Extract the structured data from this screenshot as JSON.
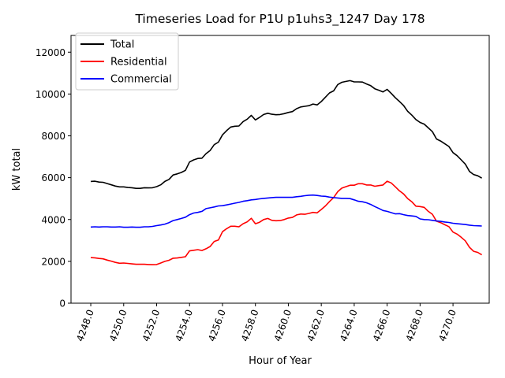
{
  "chart_data": {
    "type": "line",
    "title": "Timeseries Load for P1U p1uhs3_1247  Day 178",
    "xlabel": "Hour of Year",
    "ylabel": "kW total",
    "xlim": [
      4246.8,
      4272.2
    ],
    "ylim": [
      0,
      12800
    ],
    "xticks": [
      4248.0,
      4250.0,
      4252.0,
      4254.0,
      4256.0,
      4258.0,
      4260.0,
      4262.0,
      4264.0,
      4266.0,
      4268.0,
      4270.0
    ],
    "xtick_labels": [
      "4248.0",
      "4250.0",
      "4252.0",
      "4254.0",
      "4256.0",
      "4258.0",
      "4260.0",
      "4262.0",
      "4264.0",
      "4266.0",
      "4268.0",
      "4270.0"
    ],
    "yticks": [
      0,
      2000,
      4000,
      6000,
      8000,
      10000,
      12000
    ],
    "ytick_labels": [
      "0",
      "2000",
      "4000",
      "6000",
      "8000",
      "10000",
      "12000"
    ],
    "grid": false,
    "legend_position": "top-left",
    "x": [
      4248.0,
      4248.25,
      4248.5,
      4248.75,
      4249.0,
      4249.25,
      4249.5,
      4249.75,
      4250.0,
      4250.25,
      4250.5,
      4250.75,
      4251.0,
      4251.25,
      4251.5,
      4251.75,
      4252.0,
      4252.25,
      4252.5,
      4252.75,
      4253.0,
      4253.25,
      4253.5,
      4253.75,
      4254.0,
      4254.25,
      4254.5,
      4254.75,
      4255.0,
      4255.25,
      4255.5,
      4255.75,
      4256.0,
      4256.25,
      4256.5,
      4256.75,
      4257.0,
      4257.25,
      4257.5,
      4257.75,
      4258.0,
      4258.25,
      4258.5,
      4258.75,
      4259.0,
      4259.25,
      4259.5,
      4259.75,
      4260.0,
      4260.25,
      4260.5,
      4260.75,
      4261.0,
      4261.25,
      4261.5,
      4261.75,
      4262.0,
      4262.25,
      4262.5,
      4262.75,
      4263.0,
      4263.25,
      4263.5,
      4263.75,
      4264.0,
      4264.25,
      4264.5,
      4264.75,
      4265.0,
      4265.25,
      4265.5,
      4265.75,
      4266.0,
      4266.25,
      4266.5,
      4266.75,
      4267.0,
      4267.25,
      4267.5,
      4267.75,
      4268.0,
      4268.25,
      4268.5,
      4268.75,
      4269.0,
      4269.25,
      4269.5,
      4269.75,
      4270.0,
      4270.25,
      4270.5,
      4270.75,
      4271.0,
      4271.25,
      4271.5,
      4271.75
    ],
    "series": [
      {
        "name": "Total",
        "color": "#000000",
        "values": [
          5820,
          5830,
          5790,
          5780,
          5720,
          5660,
          5600,
          5560,
          5560,
          5530,
          5520,
          5490,
          5490,
          5520,
          5510,
          5520,
          5570,
          5660,
          5820,
          5920,
          6130,
          6180,
          6250,
          6350,
          6750,
          6850,
          6920,
          6930,
          7150,
          7300,
          7580,
          7700,
          8050,
          8250,
          8420,
          8460,
          8470,
          8680,
          8800,
          8980,
          8760,
          8880,
          9020,
          9080,
          9030,
          9010,
          9020,
          9060,
          9120,
          9160,
          9300,
          9380,
          9410,
          9440,
          9520,
          9480,
          9640,
          9850,
          10050,
          10150,
          10450,
          10560,
          10600,
          10640,
          10580,
          10580,
          10570,
          10480,
          10400,
          10250,
          10180,
          10100,
          10220,
          10030,
          9820,
          9640,
          9450,
          9170,
          8990,
          8780,
          8640,
          8560,
          8380,
          8200,
          7850,
          7750,
          7620,
          7490,
          7200,
          7050,
          6850,
          6650,
          6300,
          6150,
          6090,
          5980
        ]
      },
      {
        "name": "Residential",
        "color": "#ff0000",
        "values": [
          2180,
          2170,
          2140,
          2120,
          2060,
          2010,
          1950,
          1910,
          1920,
          1900,
          1880,
          1860,
          1860,
          1860,
          1850,
          1840,
          1850,
          1920,
          2000,
          2050,
          2150,
          2160,
          2190,
          2220,
          2500,
          2530,
          2560,
          2520,
          2600,
          2710,
          2950,
          3020,
          3420,
          3560,
          3680,
          3680,
          3650,
          3800,
          3890,
          4060,
          3800,
          3870,
          4000,
          4050,
          3960,
          3940,
          3950,
          4000,
          4070,
          4100,
          4220,
          4260,
          4250,
          4290,
          4340,
          4320,
          4480,
          4650,
          4860,
          5050,
          5330,
          5500,
          5570,
          5640,
          5640,
          5710,
          5710,
          5650,
          5650,
          5590,
          5620,
          5650,
          5830,
          5750,
          5560,
          5370,
          5220,
          5000,
          4850,
          4640,
          4620,
          4580,
          4390,
          4250,
          3920,
          3850,
          3750,
          3660,
          3400,
          3300,
          3150,
          2980,
          2670,
          2480,
          2430,
          2310
        ]
      },
      {
        "name": "Commercial",
        "color": "#0000ff",
        "values": [
          3640,
          3650,
          3640,
          3650,
          3650,
          3640,
          3640,
          3650,
          3630,
          3630,
          3640,
          3630,
          3630,
          3650,
          3650,
          3670,
          3710,
          3740,
          3780,
          3850,
          3950,
          4000,
          4050,
          4110,
          4230,
          4310,
          4340,
          4390,
          4520,
          4560,
          4600,
          4650,
          4660,
          4700,
          4740,
          4780,
          4820,
          4870,
          4900,
          4940,
          4960,
          4990,
          5010,
          5030,
          5050,
          5060,
          5060,
          5060,
          5060,
          5060,
          5090,
          5110,
          5140,
          5160,
          5170,
          5150,
          5120,
          5110,
          5070,
          5050,
          5030,
          5010,
          5010,
          5000,
          4940,
          4870,
          4850,
          4800,
          4720,
          4620,
          4530,
          4430,
          4390,
          4330,
          4270,
          4280,
          4230,
          4190,
          4170,
          4150,
          4030,
          4000,
          3990,
          3960,
          3930,
          3910,
          3880,
          3860,
          3820,
          3800,
          3780,
          3760,
          3730,
          3710,
          3700,
          3690
        ]
      }
    ]
  }
}
